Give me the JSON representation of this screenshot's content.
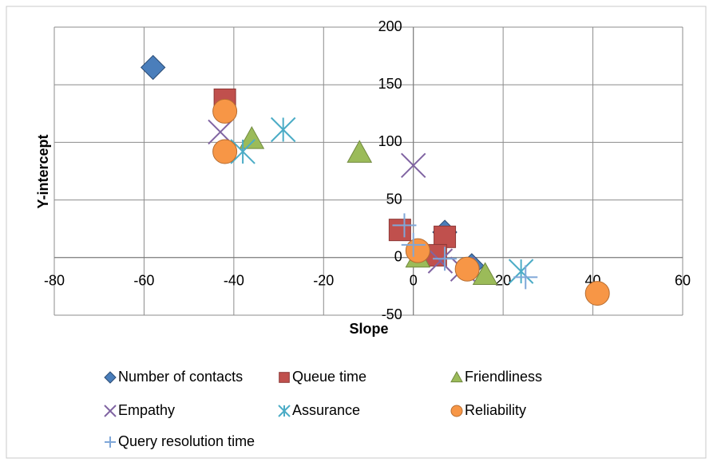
{
  "chart_data": {
    "type": "scatter",
    "x_label": "Slope",
    "y_label": "Y-intercept",
    "xlim": [
      -80,
      60
    ],
    "xticks": [
      -80,
      -60,
      -40,
      -20,
      0,
      20,
      40,
      60
    ],
    "ylim": [
      -50,
      200
    ],
    "yticks": [
      -50,
      0,
      50,
      100,
      150,
      200
    ],
    "grid": true,
    "legend": "bottom",
    "series": [
      {
        "name": "Number of contacts",
        "color": "#4a7ebb",
        "marker": "diamond",
        "x": [
          -58,
          7,
          13
        ],
        "values": [
          165,
          22,
          -7
        ]
      },
      {
        "name": "Queue time",
        "color": "#c0504d",
        "marker": "square",
        "x": [
          -42,
          -3,
          7,
          5
        ],
        "values": [
          137,
          24,
          18,
          2
        ]
      },
      {
        "name": "Friendliness",
        "color": "#9bbb59",
        "marker": "triangle",
        "x": [
          -36,
          -12,
          1,
          16
        ],
        "values": [
          103,
          91,
          0,
          -15
        ]
      },
      {
        "name": "Empathy",
        "color": "#8064a2",
        "marker": "x",
        "x": [
          -43,
          0,
          6,
          11
        ],
        "values": [
          109,
          80,
          -3,
          -10
        ]
      },
      {
        "name": "Assurance",
        "color": "#4bacc6",
        "marker": "star",
        "x": [
          -29,
          -38,
          24
        ],
        "values": [
          111,
          92,
          -12
        ]
      },
      {
        "name": "Reliability",
        "color": "#f79646",
        "marker": "circle",
        "x": [
          -42,
          -42,
          1,
          12,
          41
        ],
        "values": [
          127,
          92,
          6,
          -10,
          -31
        ]
      },
      {
        "name": "Query resolution time",
        "color": "#7fa7d8",
        "marker": "plus",
        "x": [
          -2,
          0,
          7,
          25
        ],
        "values": [
          28,
          11,
          -1,
          -17
        ]
      }
    ]
  }
}
